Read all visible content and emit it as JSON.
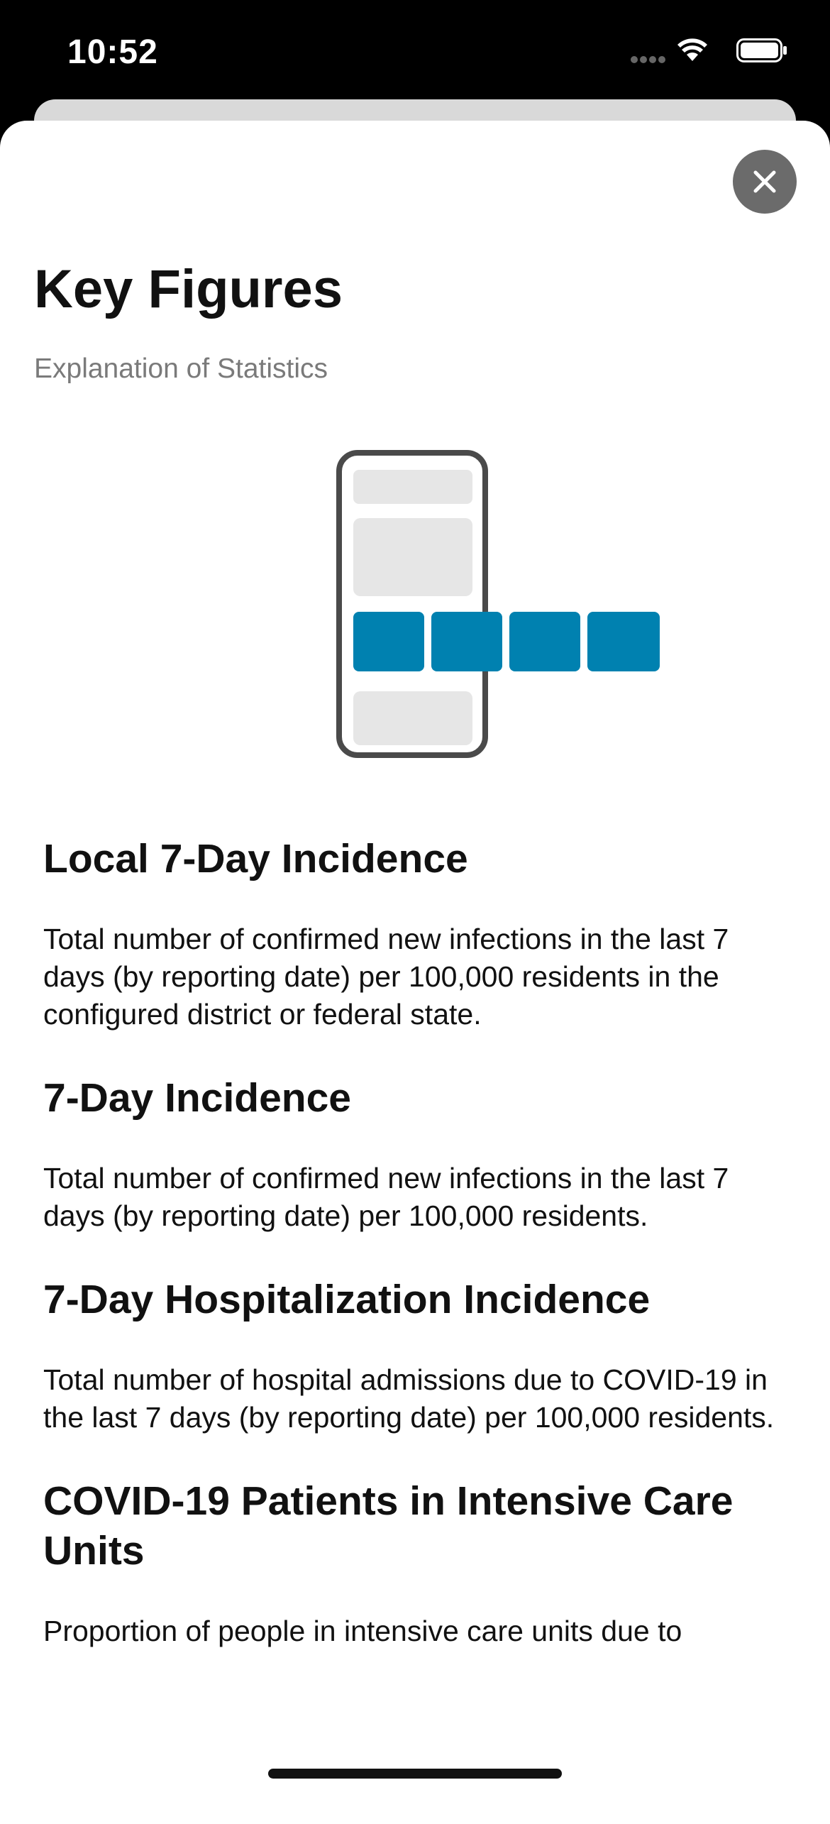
{
  "status_bar": {
    "time": "10:52",
    "icons": [
      "signal-dots-icon",
      "wifi-icon",
      "battery-icon"
    ]
  },
  "sheet": {
    "close_icon": "close-icon",
    "title": "Key Figures",
    "subtitle": "Explanation of Statistics",
    "illustration": "phone-with-cards-illustration",
    "accent_color": "#0081b0",
    "sections": [
      {
        "title": "Local 7-Day Incidence",
        "text": "Total number of confirmed new infections in the last 7 days (by reporting date) per 100,000 residents in the configured district or federal state."
      },
      {
        "title": "7-Day Incidence",
        "text": "Total number of confirmed new infections in the last 7 days (by reporting date) per 100,000 residents."
      },
      {
        "title": "7-Day Hospitalization Incidence",
        "text": "Total number of hospital admissions due to COVID-19 in the last 7 days (by reporting date) per 100,000 residents."
      },
      {
        "title": "COVID-19 Patients in Intensive Care Units",
        "text": "Proportion of people in intensive care units due to"
      }
    ]
  }
}
